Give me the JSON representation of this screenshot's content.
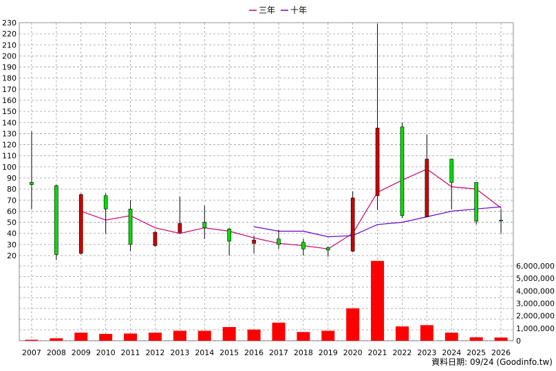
{
  "legend": {
    "ma3_label": "三年",
    "ma10_label": "十年"
  },
  "footer": "資料日期: 09/24  (Goodinfo.tw)",
  "colors": {
    "up": "#00dd00",
    "down": "#cc0000",
    "volume": "#ff0000",
    "ma3": "#cc0066",
    "ma10": "#6600cc",
    "grid": "#999999"
  },
  "chart_data": {
    "type": "candlestick+bar",
    "price_axis": {
      "min": 20,
      "max": 230,
      "step": 10
    },
    "volume_axis": {
      "min": 0,
      "max": 6000000,
      "step": 1000000,
      "tick_labels": [
        "0",
        "1,000,000",
        "2,000,000",
        "3,000,000",
        "4,000,000",
        "5,000,000",
        "6,000,000"
      ]
    },
    "categories": [
      "2007",
      "2008",
      "2009",
      "2010",
      "2011",
      "2012",
      "2013",
      "2014",
      "2015",
      "2016",
      "2017",
      "2018",
      "2019",
      "2020",
      "2021",
      "2022",
      "2023",
      "2024",
      "2025",
      "2026"
    ],
    "candles": [
      {
        "o": 84,
        "h": 132,
        "l": 62,
        "c": 86
      },
      {
        "o": 21,
        "h": 84,
        "l": 16,
        "c": 83
      },
      {
        "o": 75,
        "h": 76,
        "l": 21,
        "c": 22
      },
      {
        "o": 62,
        "h": 76,
        "l": 40,
        "c": 74
      },
      {
        "o": 30,
        "h": 70,
        "l": 24,
        "c": 62
      },
      {
        "o": 41,
        "h": 42,
        "l": 28,
        "c": 29
      },
      {
        "o": 49,
        "h": 73,
        "l": 40,
        "c": 41
      },
      {
        "o": 45,
        "h": 65,
        "l": 35,
        "c": 50
      },
      {
        "o": 33,
        "h": 45,
        "l": 20,
        "c": 44
      },
      {
        "o": 34,
        "h": 38,
        "l": 22,
        "c": 31
      },
      {
        "o": 30,
        "h": 43,
        "l": 26,
        "c": 35
      },
      {
        "o": 26,
        "h": 35,
        "l": 20,
        "c": 32
      },
      {
        "o": 25,
        "h": 28,
        "l": 19,
        "c": 27
      },
      {
        "o": 72,
        "h": 78,
        "l": 23,
        "c": 24
      },
      {
        "o": 135,
        "h": 229,
        "l": 61,
        "c": 74
      },
      {
        "o": 56,
        "h": 140,
        "l": 54,
        "c": 136
      },
      {
        "o": 107,
        "h": 129,
        "l": 55,
        "c": 55
      },
      {
        "o": 86,
        "h": 107,
        "l": 62,
        "c": 107
      },
      {
        "o": 51,
        "h": 86,
        "l": 48,
        "c": 86
      },
      {
        "o": 52,
        "h": 62,
        "l": 40,
        "c": 52
      }
    ],
    "volume": [
      80000,
      200000,
      650000,
      550000,
      580000,
      650000,
      800000,
      800000,
      1100000,
      900000,
      1450000,
      700000,
      800000,
      2600000,
      6400000,
      1150000,
      1250000,
      650000,
      280000,
      260000
    ],
    "series": [
      {
        "name": "三年",
        "values": [
          null,
          null,
          60,
          52,
          56,
          45,
          40,
          45,
          42,
          36,
          31,
          29,
          26,
          40,
          77,
          88,
          98,
          82,
          80,
          63
        ]
      },
      {
        "name": "十年",
        "values": [
          null,
          null,
          null,
          null,
          null,
          null,
          null,
          null,
          null,
          46,
          42,
          42,
          37,
          38,
          48,
          50,
          55,
          60,
          62,
          64
        ]
      }
    ]
  }
}
